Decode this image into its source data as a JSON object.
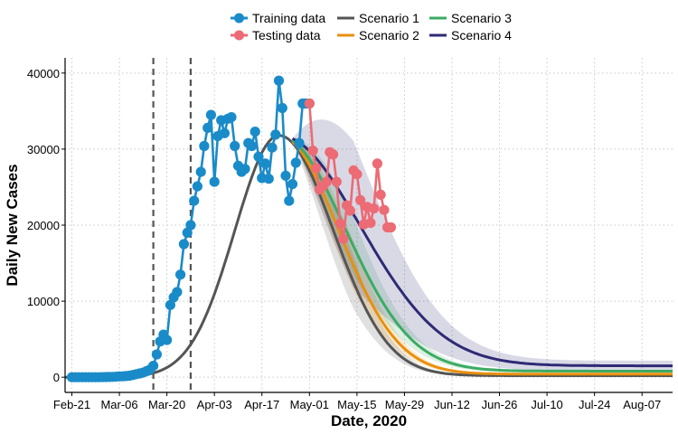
{
  "chart_data": {
    "type": "line",
    "title": "",
    "xlabel": "Date, 2020",
    "ylabel": "Daily New Cases",
    "x_range": [
      "2020-02-19",
      "2020-08-16"
    ],
    "ylim": [
      -2000,
      42000
    ],
    "grid": true,
    "legend_position": "top",
    "x_ticks": [
      "2020-02-21",
      "2020-03-06",
      "2020-03-20",
      "2020-04-03",
      "2020-04-17",
      "2020-05-01",
      "2020-05-15",
      "2020-05-29",
      "2020-06-12",
      "2020-06-26",
      "2020-07-10",
      "2020-07-24",
      "2020-08-07"
    ],
    "x_tick_labels": [
      "Feb-21",
      "Mar-06",
      "Mar-20",
      "Apr-03",
      "Apr-17",
      "May-01",
      "May-15",
      "May-29",
      "Jun-12",
      "Jun-26",
      "Jul-10",
      "Jul-24",
      "Aug-07"
    ],
    "y_ticks": [
      0,
      10000,
      20000,
      30000,
      40000
    ],
    "y_tick_labels": [
      "0",
      "10000",
      "20000",
      "30000",
      "40000"
    ],
    "vlines": [
      "2020-03-16",
      "2020-03-27"
    ],
    "legend": [
      {
        "label": "Training data",
        "kind": "point-line",
        "color": "#1a8bc9"
      },
      {
        "label": "Testing data",
        "kind": "point-line",
        "color": "#ec6b74"
      },
      {
        "label": "Scenario 1",
        "kind": "line",
        "color": "#555555"
      },
      {
        "label": "Scenario 2",
        "kind": "line",
        "color": "#e8900c"
      },
      {
        "label": "Scenario 3",
        "kind": "line",
        "color": "#3cab63"
      },
      {
        "label": "Scenario 4",
        "kind": "line",
        "color": "#2e2a75"
      }
    ],
    "series": [
      {
        "name": "Training data",
        "color": "#1a8bc9",
        "kind": "points",
        "x": [
          "2020-02-21",
          "2020-02-22",
          "2020-02-23",
          "2020-02-24",
          "2020-02-25",
          "2020-02-26",
          "2020-02-27",
          "2020-02-28",
          "2020-02-29",
          "2020-03-01",
          "2020-03-02",
          "2020-03-03",
          "2020-03-04",
          "2020-03-05",
          "2020-03-06",
          "2020-03-07",
          "2020-03-08",
          "2020-03-09",
          "2020-03-10",
          "2020-03-11",
          "2020-03-12",
          "2020-03-13",
          "2020-03-14",
          "2020-03-15",
          "2020-03-16",
          "2020-03-17",
          "2020-03-18",
          "2020-03-19",
          "2020-03-20",
          "2020-03-21",
          "2020-03-22",
          "2020-03-23",
          "2020-03-24",
          "2020-03-25",
          "2020-03-26",
          "2020-03-27",
          "2020-03-28",
          "2020-03-29",
          "2020-03-30",
          "2020-03-31",
          "2020-04-01",
          "2020-04-02",
          "2020-04-03",
          "2020-04-04",
          "2020-04-05",
          "2020-04-06",
          "2020-04-07",
          "2020-04-08",
          "2020-04-09",
          "2020-04-10",
          "2020-04-11",
          "2020-04-12",
          "2020-04-13",
          "2020-04-14",
          "2020-04-15",
          "2020-04-16",
          "2020-04-17",
          "2020-04-18",
          "2020-04-19",
          "2020-04-20",
          "2020-04-21",
          "2020-04-22",
          "2020-04-23",
          "2020-04-24",
          "2020-04-25",
          "2020-04-26",
          "2020-04-27",
          "2020-04-28",
          "2020-04-29",
          "2020-04-30",
          "2020-05-01"
        ],
        "values": [
          0,
          0,
          0,
          0,
          0,
          0,
          0,
          0,
          0,
          10,
          20,
          30,
          50,
          70,
          100,
          120,
          150,
          200,
          300,
          400,
          500,
          600,
          800,
          1000,
          1500,
          3000,
          4700,
          5600,
          4900,
          9500,
          10500,
          11200,
          13500,
          17500,
          19000,
          20000,
          23200,
          25100,
          27000,
          30400,
          32800,
          34500,
          25700,
          31700,
          33800,
          32100,
          34000,
          34200,
          30400,
          27800,
          27000,
          27400,
          30800,
          30400,
          32300,
          29000,
          26200,
          28100,
          26100,
          30200,
          31900,
          39000,
          35400,
          26500,
          23200,
          25400,
          28200,
          30800,
          36000,
          36000,
          36000
        ]
      },
      {
        "name": "Testing data",
        "color": "#ec6b74",
        "kind": "points",
        "x": [
          "2020-05-01",
          "2020-05-02",
          "2020-05-03",
          "2020-05-04",
          "2020-05-05",
          "2020-05-06",
          "2020-05-07",
          "2020-05-08",
          "2020-05-09",
          "2020-05-10",
          "2020-05-11",
          "2020-05-12",
          "2020-05-13",
          "2020-05-14",
          "2020-05-15",
          "2020-05-16",
          "2020-05-17",
          "2020-05-18",
          "2020-05-19",
          "2020-05-20",
          "2020-05-21",
          "2020-05-22",
          "2020-05-23",
          "2020-05-24",
          "2020-05-25"
        ],
        "values": [
          36000,
          29800,
          27500,
          24700,
          25100,
          25700,
          29600,
          29300,
          25700,
          20200,
          18200,
          22600,
          21900,
          27200,
          26700,
          23300,
          20100,
          22400,
          20300,
          22200,
          28100,
          24000,
          22000,
          19700,
          19700
        ]
      },
      {
        "name": "Scenario 1",
        "color": "#555555",
        "kind": "fit",
        "peak_date": "2020-04-22",
        "peak": 31800,
        "sigma_days": 16,
        "end": 200,
        "band": 0.28
      },
      {
        "name": "Scenario 2",
        "color": "#e8900c",
        "kind": "fit",
        "peak_date": "2020-04-22",
        "peak": 31800,
        "sigma_days": 17.5,
        "end": 400,
        "band": 0.22
      },
      {
        "name": "Scenario 3",
        "color": "#3cab63",
        "kind": "fit",
        "peak_date": "2020-04-22",
        "peak": 31800,
        "sigma_days": 19.5,
        "end": 800,
        "band": 0.22
      },
      {
        "name": "Scenario 4",
        "color": "#2e2a75",
        "kind": "fit",
        "peak_date": "2020-04-22",
        "peak": 31800,
        "sigma_days": 24,
        "end": 1500,
        "band": 0.45
      }
    ]
  }
}
